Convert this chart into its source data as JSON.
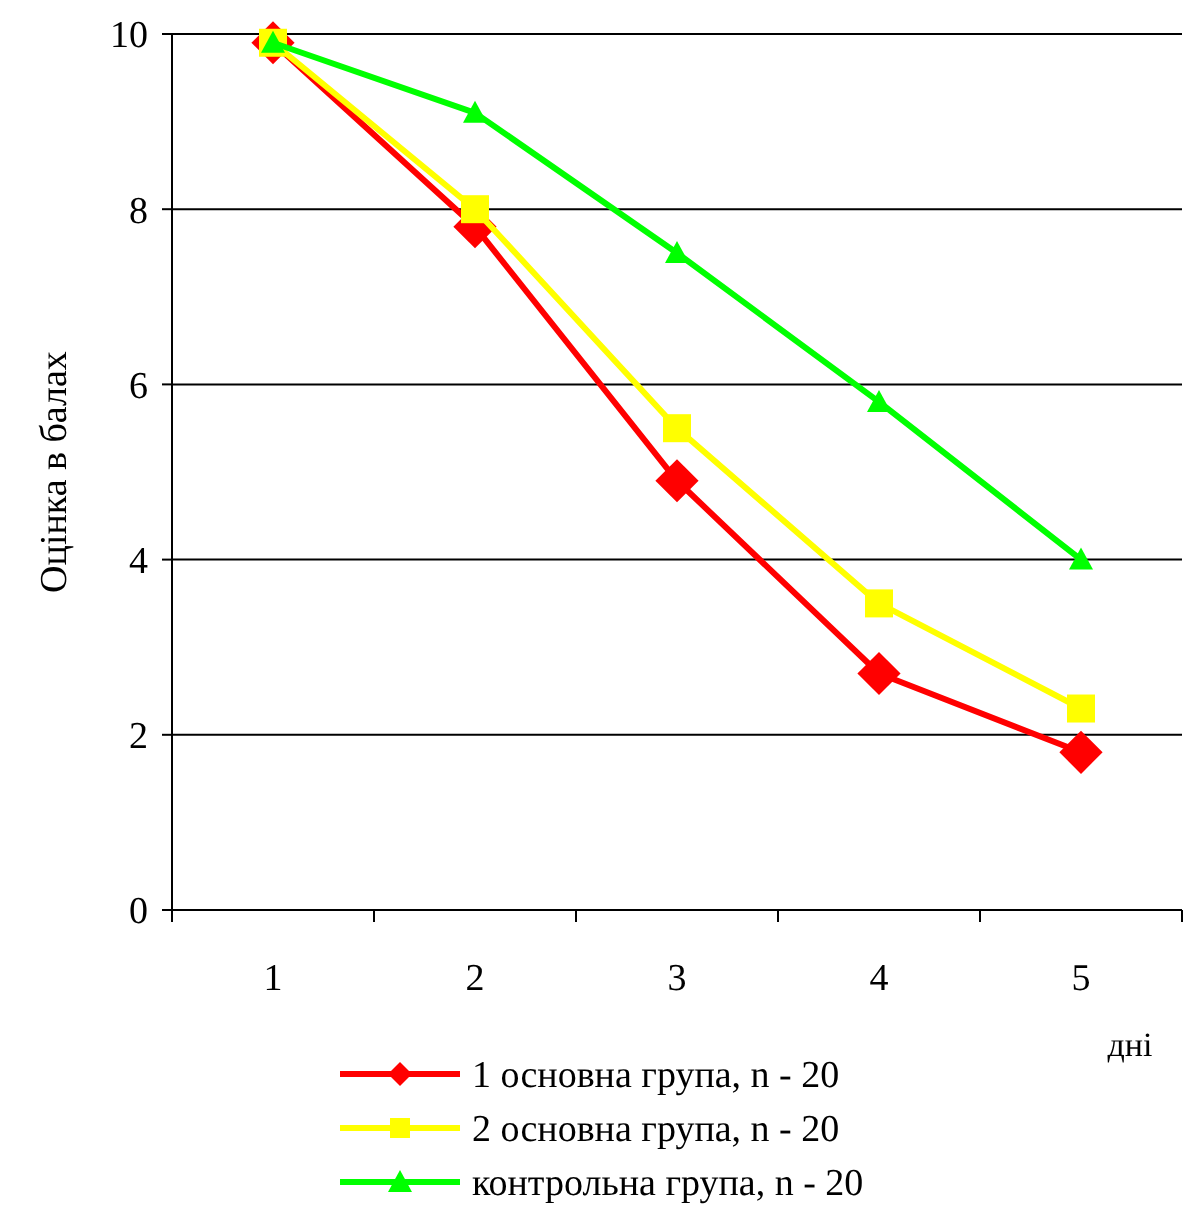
{
  "chart_data": {
    "type": "line",
    "xlabel": "дні",
    "ylabel": "Оцінка в балах",
    "categories": [
      "1",
      "2",
      "3",
      "4",
      "5"
    ],
    "ylim": [
      0,
      10
    ],
    "yticks": [
      0,
      2,
      4,
      6,
      8,
      10
    ],
    "grid": "y",
    "legend": "bottom",
    "line_style": "solid",
    "series": [
      {
        "name": "1 основна група, n - 20",
        "color": "#ff0000",
        "marker": "diamond",
        "values": [
          9.9,
          7.8,
          4.9,
          2.7,
          1.8
        ]
      },
      {
        "name": "2 основна група, n - 20",
        "color": "#ffff00",
        "marker": "square",
        "values": [
          9.9,
          8.0,
          5.5,
          3.5,
          2.3
        ]
      },
      {
        "name": "контрольна група, n - 20",
        "color": "#00ff00",
        "marker": "triangle",
        "values": [
          9.9,
          9.1,
          7.5,
          5.8,
          4.0
        ]
      }
    ]
  }
}
